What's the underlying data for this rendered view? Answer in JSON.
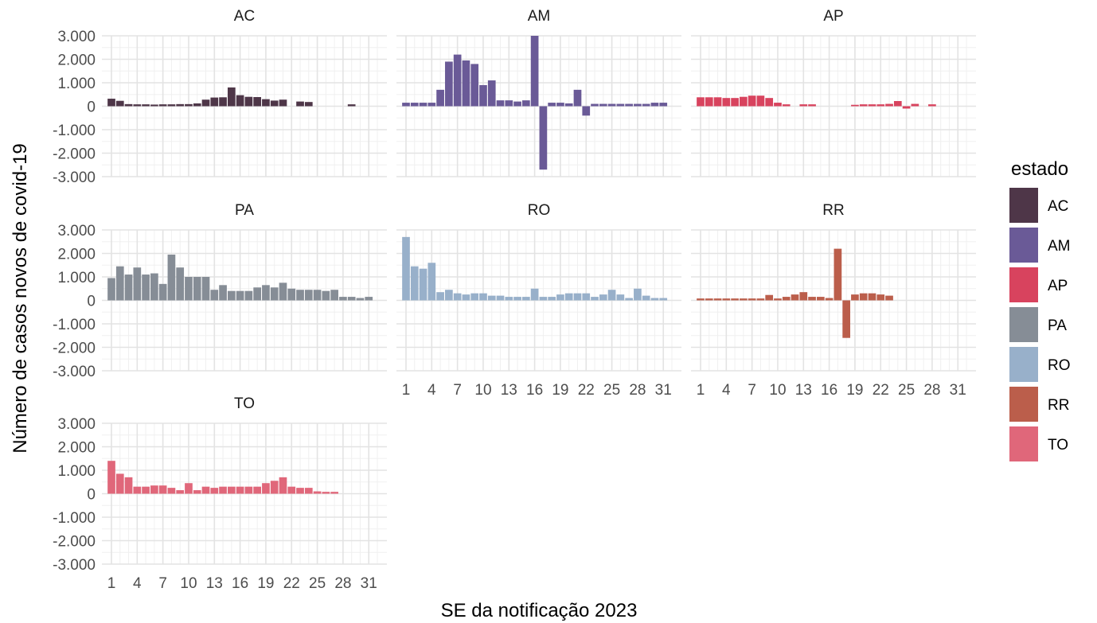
{
  "chart_data": {
    "type": "bar",
    "xlabel": "SE da notificação 2023",
    "ylabel": "Número de  casos novos de covid-19",
    "ylim": [
      -3000,
      3000
    ],
    "y_ticks": [
      3000,
      2000,
      1000,
      0,
      -1000,
      -2000,
      -3000
    ],
    "y_tick_labels": [
      "3.000",
      "2.000",
      "1.000",
      "0",
      "-1.000",
      "-2.000",
      "-3.000"
    ],
    "x_ticks": [
      1,
      4,
      7,
      10,
      13,
      16,
      19,
      22,
      25,
      28,
      31
    ],
    "x_tick_labels": [
      "1",
      "4",
      "7",
      "10",
      "13",
      "16",
      "19",
      "22",
      "25",
      "28",
      "31"
    ],
    "xlim": [
      1,
      32
    ],
    "grid": true,
    "legend": {
      "title": "estado",
      "placement": "right",
      "entries": [
        "AC",
        "AM",
        "AP",
        "PA",
        "RO",
        "RR",
        "TO"
      ]
    },
    "series": [
      {
        "name": "AC",
        "color": "#4E3648",
        "x": [
          1,
          2,
          3,
          4,
          5,
          6,
          7,
          8,
          9,
          10,
          11,
          12,
          13,
          14,
          15,
          16,
          17,
          18,
          19,
          20,
          21,
          23,
          24,
          29
        ],
        "values": [
          320,
          230,
          90,
          80,
          80,
          70,
          80,
          80,
          90,
          90,
          120,
          280,
          370,
          380,
          800,
          470,
          400,
          390,
          300,
          240,
          280,
          200,
          180,
          80
        ]
      },
      {
        "name": "AM",
        "color": "#6A5A97",
        "x": [
          1,
          2,
          3,
          4,
          5,
          6,
          7,
          8,
          9,
          10,
          11,
          12,
          13,
          14,
          15,
          16,
          17,
          18,
          19,
          20,
          21,
          22,
          23,
          24,
          25,
          26,
          27,
          28,
          29,
          30,
          31
        ],
        "values": [
          150,
          150,
          150,
          150,
          700,
          1900,
          2200,
          1950,
          1800,
          900,
          1100,
          250,
          250,
          200,
          250,
          3000,
          -2700,
          150,
          150,
          120,
          700,
          -400,
          100,
          100,
          100,
          100,
          100,
          100,
          100,
          150,
          150
        ]
      },
      {
        "name": "AP",
        "color": "#D8435E",
        "x": [
          1,
          2,
          3,
          4,
          5,
          6,
          7,
          8,
          9,
          10,
          11,
          13,
          14,
          19,
          20,
          21,
          22,
          23,
          24,
          25,
          26,
          28
        ],
        "values": [
          380,
          380,
          380,
          350,
          350,
          400,
          450,
          450,
          350,
          150,
          80,
          80,
          80,
          60,
          80,
          80,
          80,
          100,
          220,
          -100,
          100,
          80
        ]
      },
      {
        "name": "PA",
        "color": "#868D96",
        "x": [
          1,
          2,
          3,
          4,
          5,
          6,
          7,
          8,
          9,
          10,
          11,
          12,
          13,
          14,
          15,
          16,
          17,
          18,
          19,
          20,
          21,
          22,
          23,
          24,
          25,
          26,
          27,
          28,
          29,
          30,
          31
        ],
        "values": [
          950,
          1450,
          1100,
          1400,
          1100,
          1150,
          700,
          1950,
          1400,
          1000,
          1000,
          1000,
          450,
          650,
          400,
          400,
          400,
          550,
          650,
          550,
          750,
          500,
          450,
          450,
          450,
          400,
          450,
          150,
          150,
          100,
          150
        ]
      },
      {
        "name": "RO",
        "color": "#98B0CA",
        "x": [
          1,
          2,
          3,
          4,
          5,
          6,
          7,
          8,
          9,
          10,
          11,
          12,
          13,
          14,
          15,
          16,
          17,
          18,
          19,
          20,
          21,
          22,
          23,
          24,
          25,
          26,
          27,
          28,
          29,
          30,
          31
        ],
        "values": [
          2700,
          1450,
          1350,
          1600,
          350,
          450,
          300,
          250,
          300,
          300,
          200,
          200,
          150,
          150,
          150,
          500,
          150,
          150,
          250,
          300,
          300,
          300,
          150,
          250,
          450,
          250,
          100,
          500,
          200,
          100,
          100
        ]
      },
      {
        "name": "RR",
        "color": "#BB5E4B",
        "x": [
          1,
          2,
          3,
          4,
          5,
          6,
          7,
          8,
          9,
          10,
          11,
          12,
          13,
          14,
          15,
          16,
          17,
          18,
          19,
          20,
          21,
          22,
          23
        ],
        "values": [
          80,
          80,
          80,
          80,
          80,
          80,
          80,
          80,
          230,
          80,
          150,
          250,
          350,
          150,
          150,
          100,
          2200,
          -1600,
          250,
          300,
          300,
          250,
          200
        ]
      },
      {
        "name": "TO",
        "color": "#E0677A",
        "x": [
          1,
          2,
          3,
          4,
          5,
          6,
          7,
          8,
          9,
          10,
          11,
          12,
          13,
          14,
          15,
          16,
          17,
          18,
          19,
          20,
          21,
          22,
          23,
          24,
          25,
          26,
          27
        ],
        "values": [
          1400,
          850,
          700,
          300,
          300,
          350,
          350,
          250,
          150,
          450,
          150,
          300,
          250,
          300,
          300,
          300,
          300,
          300,
          450,
          550,
          700,
          300,
          250,
          250,
          100,
          80,
          80
        ]
      }
    ]
  }
}
